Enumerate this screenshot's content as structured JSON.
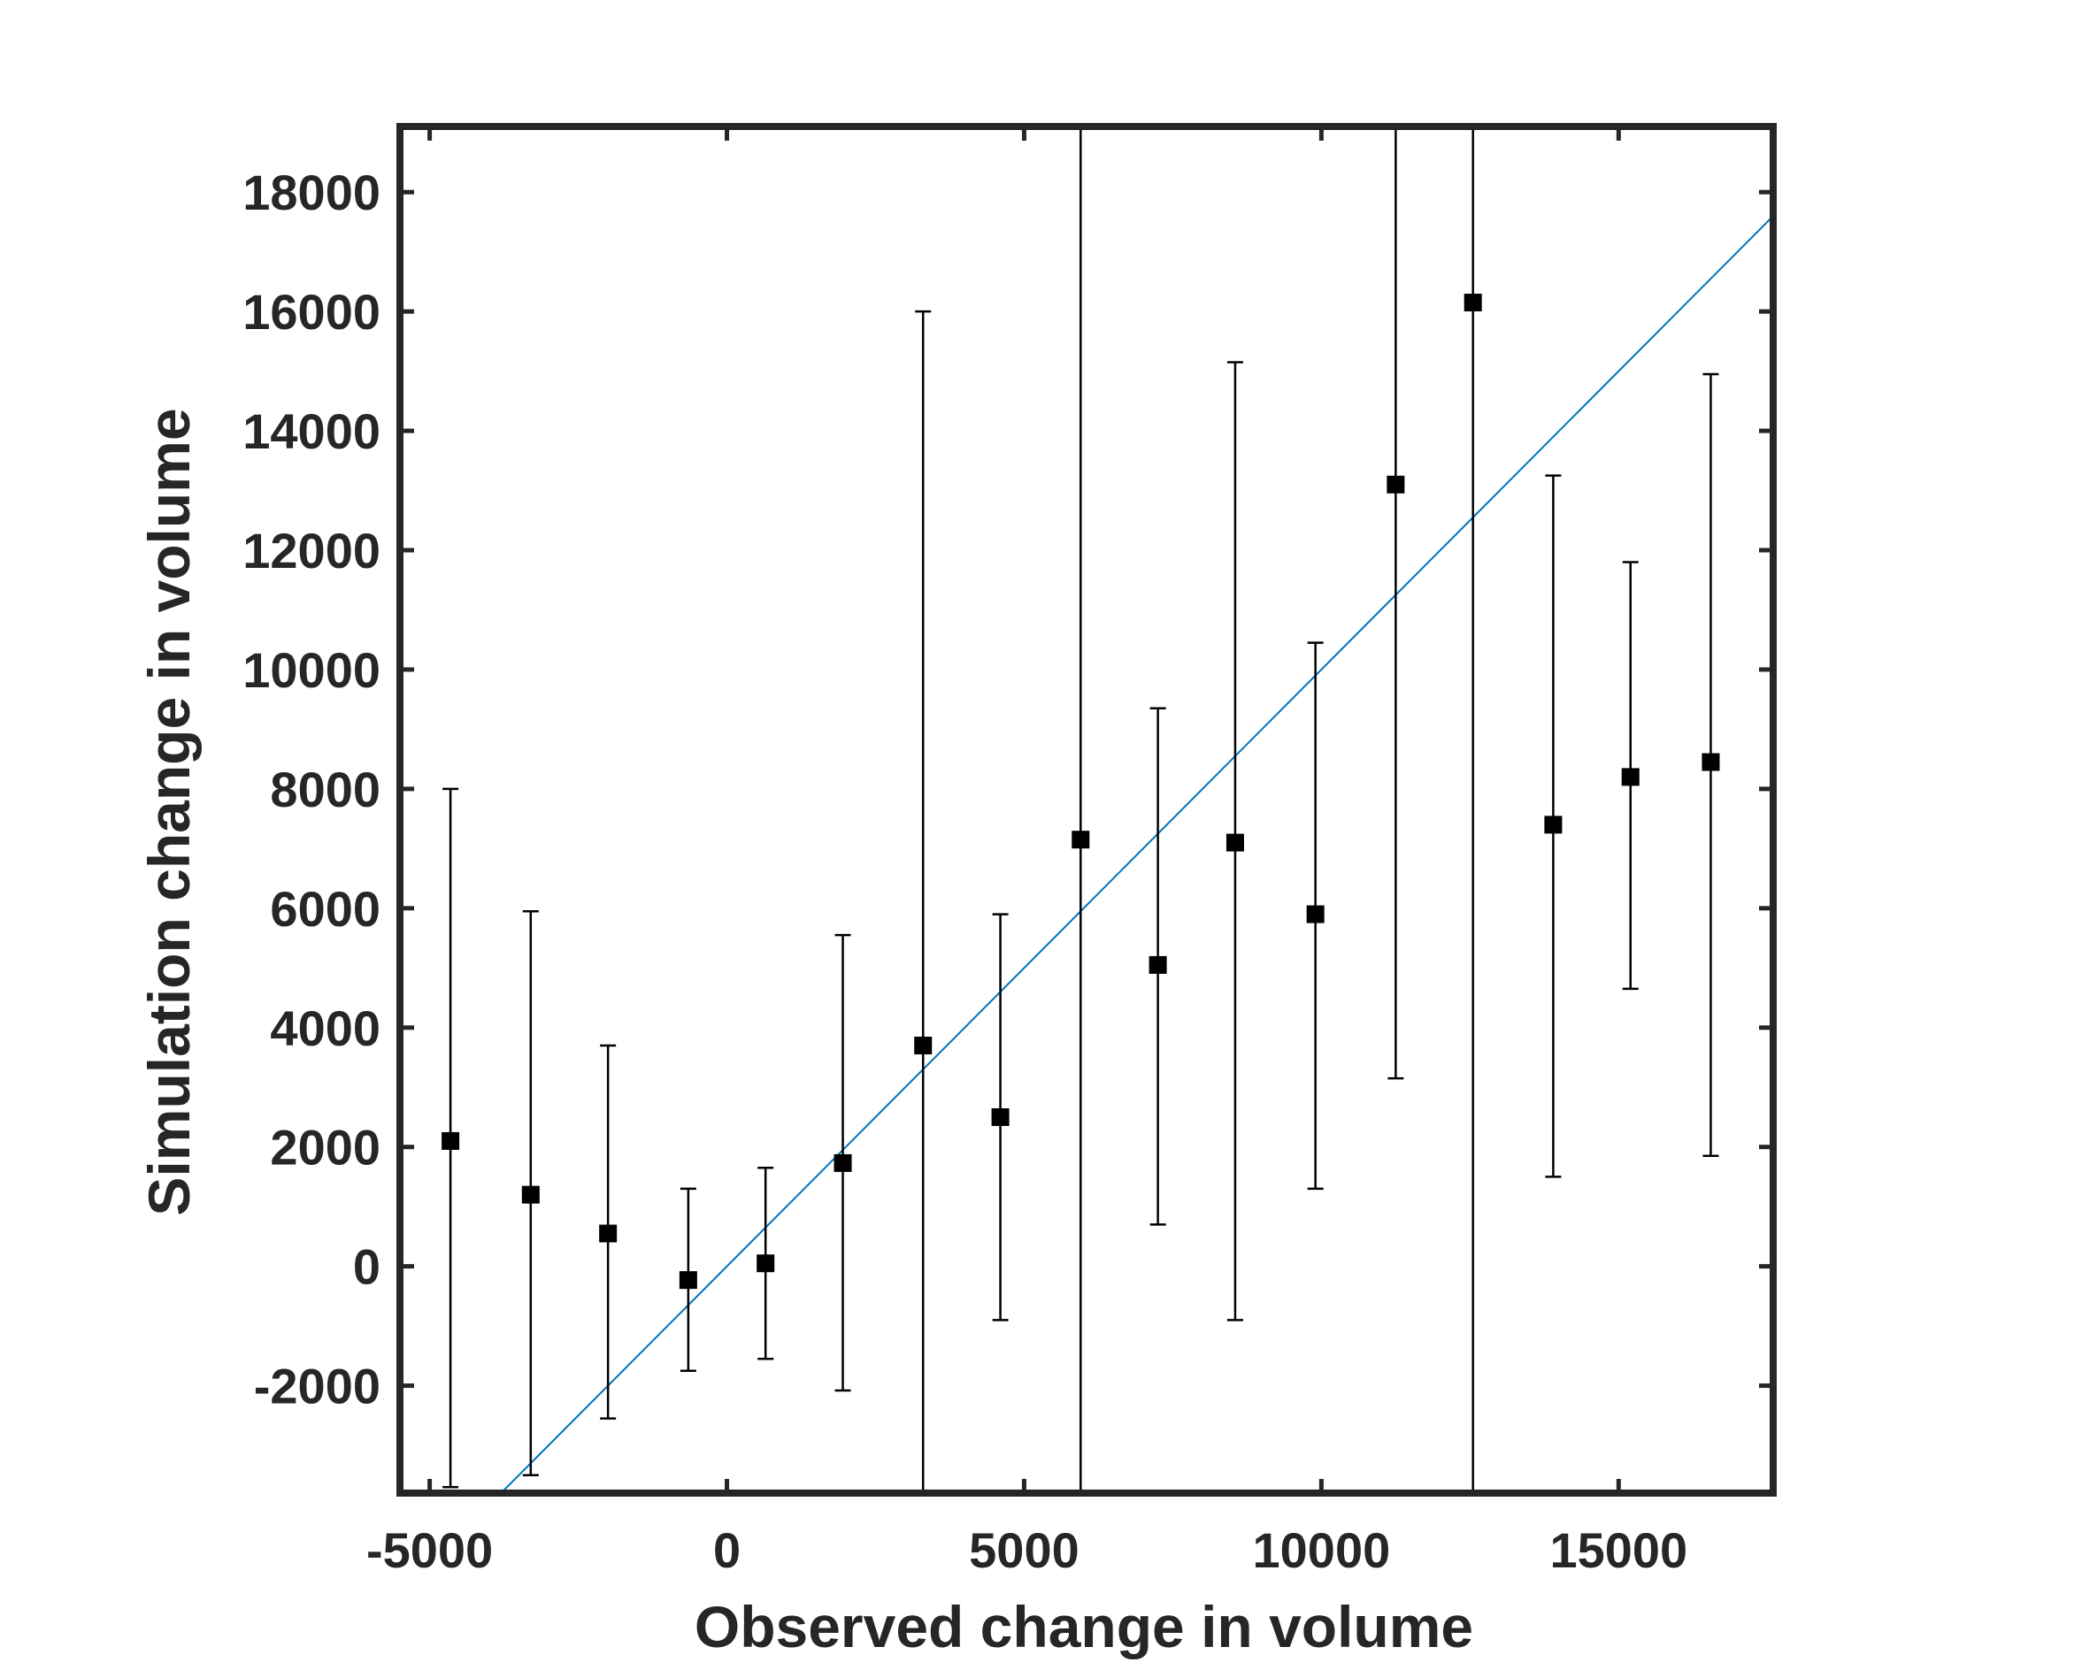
{
  "chart_data": {
    "type": "scatter",
    "title": "",
    "xlabel": "Observed change in volume",
    "ylabel": "Simulation change in volume",
    "xlim": [
      -5500,
      17600
    ],
    "ylim": [
      -3800,
      19100
    ],
    "xticks": [
      -5000,
      0,
      5000,
      10000,
      15000
    ],
    "xtick_labels": [
      "-5000",
      "0",
      "5000",
      "10000",
      "15000"
    ],
    "yticks": [
      -2000,
      0,
      2000,
      4000,
      6000,
      8000,
      10000,
      12000,
      14000,
      16000,
      18000
    ],
    "ytick_labels": [
      "-2000",
      "0",
      "2000",
      "4000",
      "6000",
      "8000",
      "10000",
      "12000",
      "14000",
      "16000",
      "18000"
    ],
    "grid": false,
    "legend": "none",
    "series": [
      {
        "marker": "square",
        "color": "#000000",
        "error_bars": true,
        "points": [
          {
            "x": -4650,
            "y": 2100,
            "lower": -3700,
            "upper": 8000
          },
          {
            "x": -3300,
            "y": 1200,
            "lower": -3500,
            "upper": 5950
          },
          {
            "x": -2000,
            "y": 550,
            "lower": -2550,
            "upper": 3700
          },
          {
            "x": -650,
            "y": -230,
            "lower": -1750,
            "upper": 1300
          },
          {
            "x": 650,
            "y": 50,
            "lower": -1550,
            "upper": 1650
          },
          {
            "x": 1950,
            "y": 1730,
            "lower": -2080,
            "upper": 5550
          },
          {
            "x": 3300,
            "y": 3700,
            "lower": -3800,
            "upper": 16000
          },
          {
            "x": 4600,
            "y": 2500,
            "lower": -900,
            "upper": 5900
          },
          {
            "x": 5950,
            "y": 7150,
            "lower": -3800,
            "upper": 19100
          },
          {
            "x": 7250,
            "y": 5050,
            "lower": 700,
            "upper": 9350
          },
          {
            "x": 8550,
            "y": 7100,
            "lower": -900,
            "upper": 15150
          },
          {
            "x": 9900,
            "y": 5900,
            "lower": 1300,
            "upper": 10450
          },
          {
            "x": 11250,
            "y": 13100,
            "lower": 3150,
            "upper": 19100
          },
          {
            "x": 12550,
            "y": 16150,
            "lower": -3800,
            "upper": 19100
          },
          {
            "x": 13900,
            "y": 7400,
            "lower": 1500,
            "upper": 13250
          },
          {
            "x": 15200,
            "y": 8200,
            "lower": 4650,
            "upper": 11800
          },
          {
            "x": 16550,
            "y": 8450,
            "lower": 1850,
            "upper": 14950
          }
        ]
      },
      {
        "line_type": "reference_line",
        "color": "#0072BD",
        "x": [
          -3900,
          17600
        ],
        "y": [
          -3900,
          17600
        ]
      }
    ],
    "colors": {
      "axes": "#262626",
      "marker": "#000000",
      "error_bar": "#000000",
      "reference_line": "#0072BD"
    }
  }
}
